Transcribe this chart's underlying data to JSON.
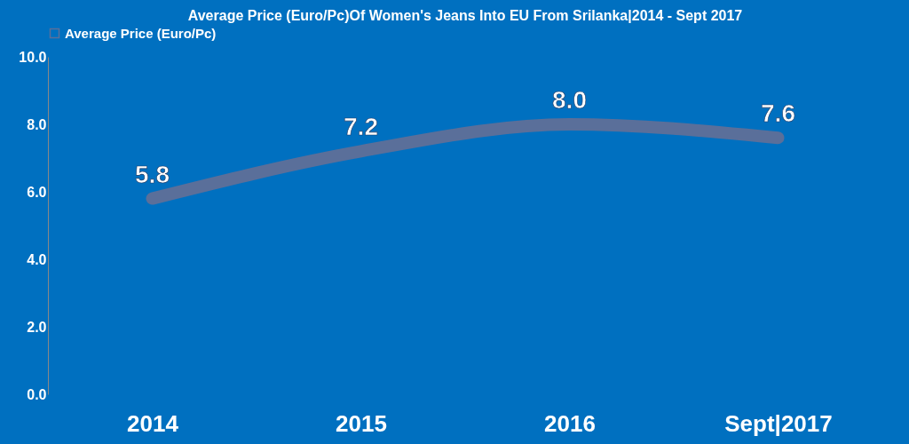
{
  "chart_data": {
    "type": "line",
    "title": "Average Price (Euro/Pc)Of Women's Jeans Into EU From Srilanka|2014 - Sept 2017",
    "categories": [
      "2014",
      "2015",
      "2016",
      "Sept|2017"
    ],
    "series": [
      {
        "name": "Average Price (Euro/Pc)",
        "color": "#5a6f9a",
        "values": [
          5.8,
          7.2,
          8.0,
          7.6
        ]
      }
    ],
    "value_labels": [
      "5.8",
      "7.2",
      "8.0",
      "7.6"
    ],
    "ylim": [
      0,
      10
    ],
    "yticks": [
      {
        "value": 0,
        "label": "0.0"
      },
      {
        "value": 2,
        "label": "2.0"
      },
      {
        "value": 4,
        "label": "4.0"
      },
      {
        "value": 6,
        "label": "6.0"
      },
      {
        "value": 8,
        "label": "8.0"
      },
      {
        "value": 10,
        "label": "10.0"
      }
    ],
    "grid": false,
    "legend": "top"
  }
}
